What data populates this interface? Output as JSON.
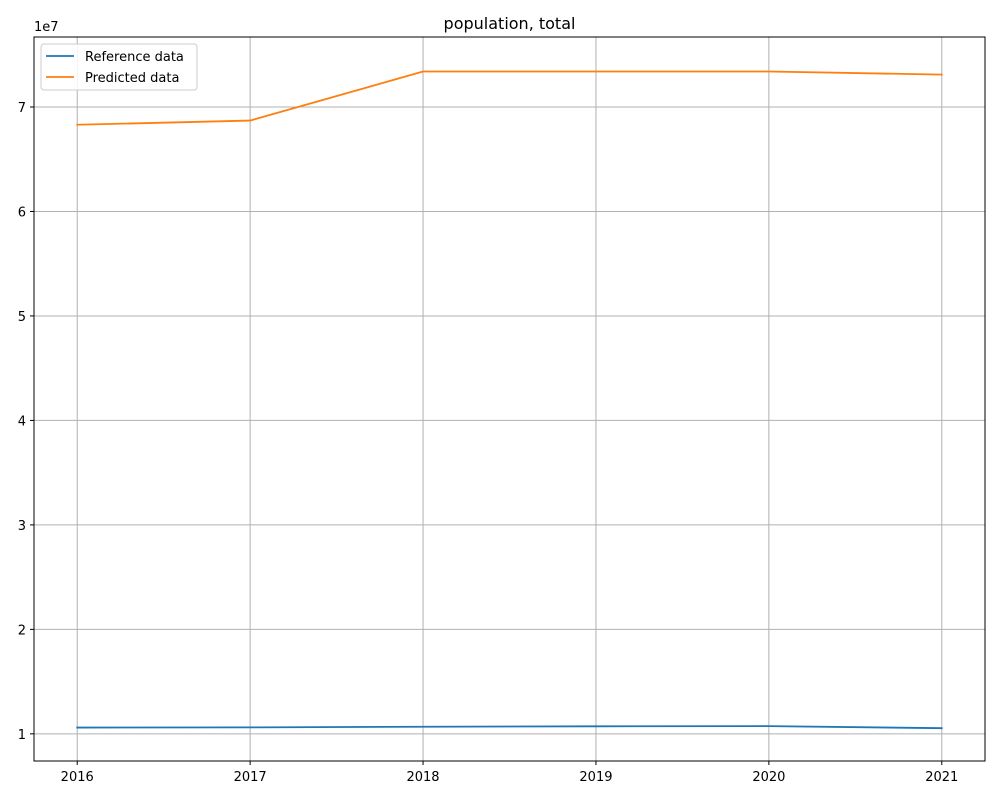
{
  "chart_data": {
    "type": "line",
    "title": "population, total",
    "xlabel": "",
    "ylabel": "",
    "y_scale_label": "1e7",
    "x": [
      2016,
      2017,
      2018,
      2019,
      2020,
      2021
    ],
    "x_ticks": [
      "2016",
      "2017",
      "2018",
      "2019",
      "2020",
      "2021"
    ],
    "y_ticks": [
      10000000,
      20000000,
      30000000,
      40000000,
      50000000,
      60000000,
      70000000
    ],
    "y_tick_labels": [
      "1",
      "2",
      "3",
      "4",
      "5",
      "6",
      "7"
    ],
    "xlim": [
      2015.75,
      2021.25
    ],
    "ylim": [
      7400000,
      76700000
    ],
    "grid": true,
    "legend_position": "top-left",
    "series": [
      {
        "name": "Reference data",
        "color": "#1f77b4",
        "values": [
          10600000,
          10620000,
          10680000,
          10720000,
          10740000,
          10540000
        ]
      },
      {
        "name": "Predicted data",
        "color": "#ff7f0e",
        "values": [
          68300000,
          68700000,
          73400000,
          73400000,
          73400000,
          73100000
        ]
      }
    ]
  }
}
